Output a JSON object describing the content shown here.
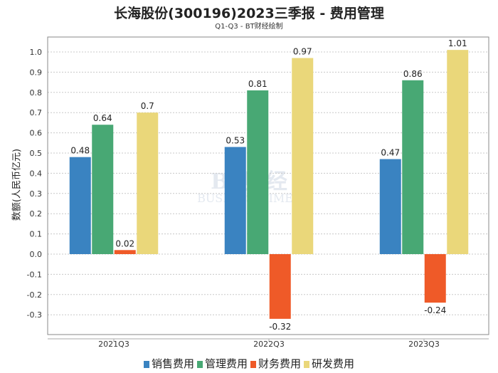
{
  "chart_data": {
    "type": "bar",
    "title": "长海股份(300196)2023三季报 - 费用管理",
    "subtitle": "Q1-Q3 - BT财经绘制",
    "xlabel": "",
    "ylabel": "数额(人民币亿元)",
    "categories": [
      "2021Q3",
      "2022Q3",
      "2023Q3"
    ],
    "series": [
      {
        "name": "销售费用",
        "values": [
          0.48,
          0.53,
          0.47
        ],
        "color": "#3a83c1"
      },
      {
        "name": "管理费用",
        "values": [
          0.64,
          0.81,
          0.86
        ],
        "color": "#48a874"
      },
      {
        "name": "财务费用",
        "values": [
          0.02,
          -0.32,
          -0.24
        ],
        "color": "#ef5a28"
      },
      {
        "name": "研发费用",
        "values": [
          0.7,
          0.97,
          1.01
        ],
        "color": "#ead77a"
      }
    ],
    "ylim": [
      -0.4,
      1.075
    ],
    "yticks": [
      "-0.3",
      "-0.2",
      "-0.1",
      "0.0",
      "0.1",
      "0.2",
      "0.3",
      "0.4",
      "0.5",
      "0.6",
      "0.7",
      "0.8",
      "0.9",
      "1.0"
    ],
    "grid": true,
    "legend_position": "bottom",
    "watermark": "BT财经 BUSINESSTIMES"
  }
}
